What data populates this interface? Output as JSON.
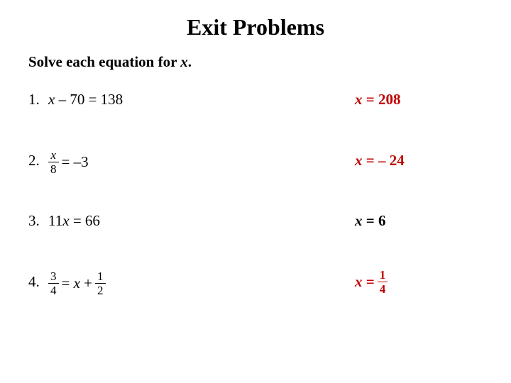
{
  "title": "Exit Problems",
  "instructions_prefix": "Solve each equation for ",
  "instructions_var": "x",
  "instructions_suffix": ".",
  "colors": {
    "answer_red": "#c00000",
    "text": "#000000",
    "background": "#ffffff"
  },
  "typography": {
    "title_fontsize": 32,
    "body_fontsize": 21,
    "frac_fontsize": 17,
    "font_family": "Times New Roman"
  },
  "problems": [
    {
      "number": "1.",
      "equation_plain": "x – 70 = 138",
      "answer_plain": "x = 208",
      "answer_color": "red"
    },
    {
      "number": "2.",
      "equation_frac": {
        "num": "x",
        "den": "8",
        "rhs": "= –3",
        "num_italic": true
      },
      "answer_plain": "x = – 24",
      "answer_color": "red"
    },
    {
      "number": "3.",
      "equation_plain": "11x = 66",
      "answer_plain": "x = 6",
      "answer_color": "black"
    },
    {
      "number": "4.",
      "equation_two_fracs": {
        "lhs": {
          "num": "3",
          "den": "4"
        },
        "mid": "= x +",
        "rhs": {
          "num": "1",
          "den": "2"
        }
      },
      "answer_frac": {
        "prefix": "x =",
        "num": "1",
        "den": "4"
      },
      "answer_color": "red"
    }
  ]
}
